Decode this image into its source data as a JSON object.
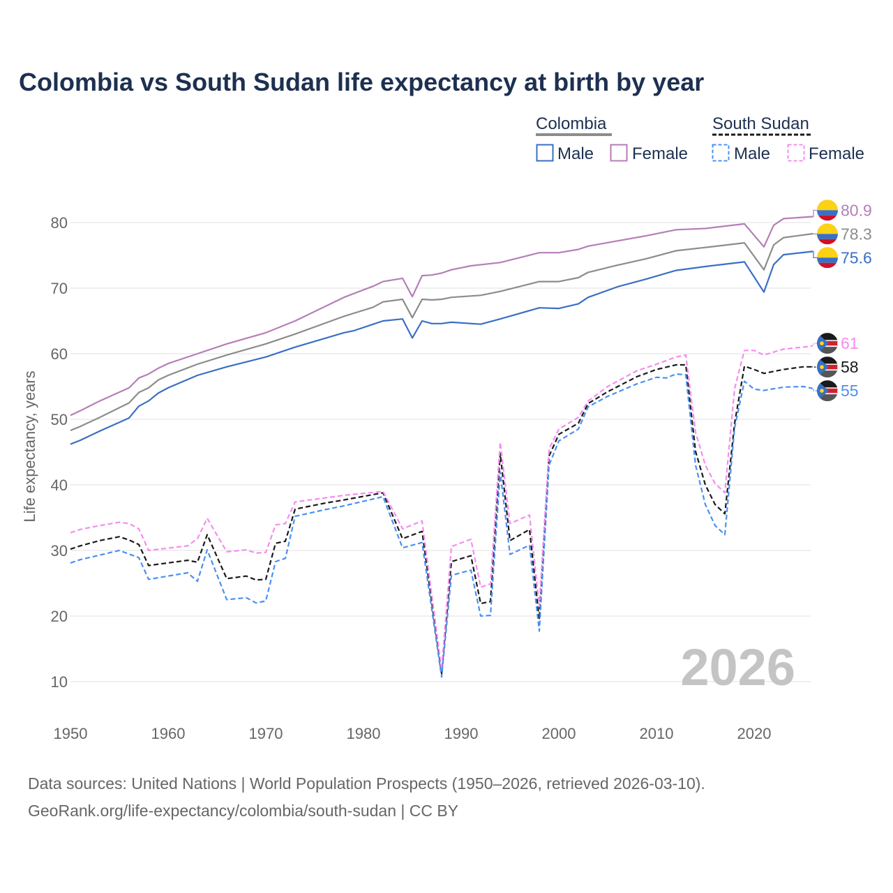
{
  "chart_data": {
    "type": "line",
    "title": "Colombia vs South Sudan life expectancy at birth by year",
    "xlabel": "",
    "ylabel": "Life expectancy, years",
    "xlim": [
      1950,
      2026
    ],
    "ylim": [
      5,
      85
    ],
    "x_ticks": [
      "1950",
      "1960",
      "1970",
      "1980",
      "1990",
      "2000",
      "2010",
      "2020"
    ],
    "y_ticks": [
      "10",
      "20",
      "30",
      "40",
      "50",
      "60",
      "70",
      "80"
    ],
    "grid": true,
    "watermark_year": "2026",
    "legend": {
      "placement": "top-right",
      "groups": [
        {
          "name": "Colombia",
          "items": [
            "Male",
            "Female"
          ]
        },
        {
          "name": "South Sudan",
          "items": [
            "Male",
            "Female"
          ]
        }
      ]
    },
    "series": [
      {
        "name": "Colombia Female",
        "country": "Colombia",
        "sex": "Female",
        "color": "#b57eb8",
        "dashed": false,
        "end_label": "80.9",
        "points": [
          [
            1950,
            50.6
          ],
          [
            1951,
            51.3
          ],
          [
            1953,
            52.8
          ],
          [
            1956,
            54.8
          ],
          [
            1957,
            56.3
          ],
          [
            1958,
            56.9
          ],
          [
            1959,
            57.8
          ],
          [
            1960,
            58.5
          ],
          [
            1963,
            60.0
          ],
          [
            1966,
            61.5
          ],
          [
            1970,
            63.2
          ],
          [
            1973,
            65.0
          ],
          [
            1978,
            68.6
          ],
          [
            1981,
            70.3
          ],
          [
            1982,
            71.0
          ],
          [
            1984,
            71.5
          ],
          [
            1985,
            68.7
          ],
          [
            1986,
            71.9
          ],
          [
            1987,
            72.0
          ],
          [
            1988,
            72.3
          ],
          [
            1989,
            72.8
          ],
          [
            1991,
            73.4
          ],
          [
            1994,
            73.9
          ],
          [
            1998,
            75.4
          ],
          [
            2000,
            75.4
          ],
          [
            2002,
            75.9
          ],
          [
            2003,
            76.4
          ],
          [
            2006,
            77.2
          ],
          [
            2009,
            78.0
          ],
          [
            2012,
            78.9
          ],
          [
            2015,
            79.1
          ],
          [
            2019,
            79.8
          ],
          [
            2021,
            76.3
          ],
          [
            2022,
            79.6
          ],
          [
            2023,
            80.6
          ],
          [
            2026,
            80.9
          ]
        ]
      },
      {
        "name": "Colombia",
        "country": "Colombia",
        "sex": "Both",
        "color": "#8c8c8c",
        "dashed": false,
        "end_label": "78.3",
        "points": [
          [
            1950,
            48.3
          ],
          [
            1951,
            48.9
          ],
          [
            1953,
            50.3
          ],
          [
            1956,
            52.5
          ],
          [
            1957,
            54.1
          ],
          [
            1958,
            54.8
          ],
          [
            1959,
            56.0
          ],
          [
            1960,
            56.7
          ],
          [
            1963,
            58.4
          ],
          [
            1966,
            59.8
          ],
          [
            1970,
            61.5
          ],
          [
            1973,
            63.0
          ],
          [
            1978,
            65.7
          ],
          [
            1981,
            67.1
          ],
          [
            1982,
            67.9
          ],
          [
            1984,
            68.3
          ],
          [
            1985,
            65.5
          ],
          [
            1986,
            68.3
          ],
          [
            1987,
            68.2
          ],
          [
            1988,
            68.3
          ],
          [
            1989,
            68.6
          ],
          [
            1992,
            68.9
          ],
          [
            1994,
            69.5
          ],
          [
            1998,
            71.0
          ],
          [
            2000,
            71.0
          ],
          [
            2002,
            71.6
          ],
          [
            2003,
            72.4
          ],
          [
            2006,
            73.5
          ],
          [
            2009,
            74.5
          ],
          [
            2012,
            75.7
          ],
          [
            2015,
            76.2
          ],
          [
            2019,
            76.9
          ],
          [
            2021,
            72.8
          ],
          [
            2022,
            76.6
          ],
          [
            2023,
            77.7
          ],
          [
            2026,
            78.3
          ]
        ]
      },
      {
        "name": "Colombia Male",
        "country": "Colombia",
        "sex": "Male",
        "color": "#3a6fc4",
        "dashed": false,
        "end_label": "75.6",
        "points": [
          [
            1950,
            46.2
          ],
          [
            1951,
            46.8
          ],
          [
            1953,
            48.2
          ],
          [
            1956,
            50.2
          ],
          [
            1957,
            52.0
          ],
          [
            1958,
            52.8
          ],
          [
            1959,
            54.0
          ],
          [
            1960,
            54.8
          ],
          [
            1963,
            56.7
          ],
          [
            1966,
            58.0
          ],
          [
            1970,
            59.5
          ],
          [
            1973,
            61.0
          ],
          [
            1978,
            63.2
          ],
          [
            1979,
            63.5
          ],
          [
            1981,
            64.5
          ],
          [
            1982,
            65.0
          ],
          [
            1984,
            65.3
          ],
          [
            1985,
            62.4
          ],
          [
            1986,
            65.0
          ],
          [
            1987,
            64.6
          ],
          [
            1988,
            64.6
          ],
          [
            1989,
            64.8
          ],
          [
            1992,
            64.5
          ],
          [
            1994,
            65.3
          ],
          [
            1998,
            67.0
          ],
          [
            2000,
            66.9
          ],
          [
            2002,
            67.6
          ],
          [
            2003,
            68.6
          ],
          [
            2006,
            70.2
          ],
          [
            2009,
            71.4
          ],
          [
            2012,
            72.7
          ],
          [
            2015,
            73.3
          ],
          [
            2019,
            74.0
          ],
          [
            2021,
            69.4
          ],
          [
            2022,
            73.6
          ],
          [
            2023,
            75.1
          ],
          [
            2026,
            75.6
          ]
        ]
      },
      {
        "name": "South Sudan Female",
        "country": "South Sudan",
        "sex": "Female",
        "color": "#f58cf0",
        "dashed": true,
        "end_label": "61",
        "points": [
          [
            1950,
            32.7
          ],
          [
            1951,
            33.2
          ],
          [
            1953,
            33.8
          ],
          [
            1955,
            34.3
          ],
          [
            1956,
            34.1
          ],
          [
            1957,
            33.3
          ],
          [
            1958,
            30.0
          ],
          [
            1962,
            30.7
          ],
          [
            1963,
            31.8
          ],
          [
            1964,
            34.9
          ],
          [
            1966,
            29.8
          ],
          [
            1968,
            30.1
          ],
          [
            1969,
            29.6
          ],
          [
            1970,
            29.7
          ],
          [
            1971,
            33.9
          ],
          [
            1972,
            34.1
          ],
          [
            1973,
            37.4
          ],
          [
            1976,
            38.0
          ],
          [
            1978,
            38.4
          ],
          [
            1982,
            39.0
          ],
          [
            1984,
            33.3
          ],
          [
            1986,
            34.5
          ],
          [
            1988,
            11.8
          ],
          [
            1989,
            30.6
          ],
          [
            1991,
            31.7
          ],
          [
            1992,
            24.4
          ],
          [
            1993,
            24.9
          ],
          [
            1994,
            46.5
          ],
          [
            1995,
            34.1
          ],
          [
            1997,
            35.4
          ],
          [
            1998,
            21.5
          ],
          [
            1999,
            45.5
          ],
          [
            2000,
            48.5
          ],
          [
            2002,
            50.3
          ],
          [
            2003,
            52.8
          ],
          [
            2005,
            55.0
          ],
          [
            2008,
            57.4
          ],
          [
            2010,
            58.4
          ],
          [
            2012,
            59.5
          ],
          [
            2013,
            59.8
          ],
          [
            2014,
            48.0
          ],
          [
            2015,
            43.0
          ],
          [
            2016,
            40.2
          ],
          [
            2017,
            38.8
          ],
          [
            2018,
            54.7
          ],
          [
            2019,
            60.5
          ],
          [
            2020,
            60.5
          ],
          [
            2021,
            59.8
          ],
          [
            2023,
            60.7
          ],
          [
            2025,
            61.0
          ],
          [
            2026,
            61.2
          ]
        ]
      },
      {
        "name": "South Sudan",
        "country": "South Sudan",
        "sex": "Both",
        "color": "#1a1a1a",
        "dashed": true,
        "end_label": "58",
        "points": [
          [
            1950,
            30.2
          ],
          [
            1951,
            30.7
          ],
          [
            1953,
            31.5
          ],
          [
            1955,
            32.1
          ],
          [
            1956,
            31.6
          ],
          [
            1957,
            30.9
          ],
          [
            1958,
            27.7
          ],
          [
            1962,
            28.5
          ],
          [
            1963,
            28.2
          ],
          [
            1964,
            32.4
          ],
          [
            1966,
            25.7
          ],
          [
            1968,
            26.1
          ],
          [
            1969,
            25.5
          ],
          [
            1970,
            25.6
          ],
          [
            1971,
            31.1
          ],
          [
            1972,
            31.4
          ],
          [
            1973,
            36.3
          ],
          [
            1976,
            37.2
          ],
          [
            1978,
            37.7
          ],
          [
            1982,
            38.8
          ],
          [
            1984,
            31.8
          ],
          [
            1986,
            32.9
          ],
          [
            1988,
            11.2
          ],
          [
            1989,
            28.3
          ],
          [
            1991,
            29.2
          ],
          [
            1992,
            21.9
          ],
          [
            1993,
            22.2
          ],
          [
            1994,
            44.8
          ],
          [
            1995,
            31.5
          ],
          [
            1997,
            33.2
          ],
          [
            1998,
            19.5
          ],
          [
            1999,
            44.4
          ],
          [
            2000,
            47.7
          ],
          [
            2002,
            49.4
          ],
          [
            2003,
            52.4
          ],
          [
            2005,
            54.2
          ],
          [
            2008,
            56.5
          ],
          [
            2010,
            57.6
          ],
          [
            2012,
            58.3
          ],
          [
            2013,
            58.3
          ],
          [
            2014,
            45.1
          ],
          [
            2015,
            40.0
          ],
          [
            2016,
            37.0
          ],
          [
            2017,
            35.6
          ],
          [
            2018,
            49.4
          ],
          [
            2019,
            58.1
          ],
          [
            2020,
            57.6
          ],
          [
            2021,
            57.0
          ],
          [
            2023,
            57.6
          ],
          [
            2025,
            58.0
          ],
          [
            2026,
            58.0
          ]
        ]
      },
      {
        "name": "South Sudan Male",
        "country": "South Sudan",
        "sex": "Male",
        "color": "#4a90f0",
        "dashed": true,
        "end_label": "55",
        "points": [
          [
            1950,
            28.1
          ],
          [
            1951,
            28.6
          ],
          [
            1953,
            29.3
          ],
          [
            1955,
            30.0
          ],
          [
            1957,
            28.9
          ],
          [
            1958,
            25.6
          ],
          [
            1962,
            26.6
          ],
          [
            1963,
            25.3
          ],
          [
            1964,
            30.1
          ],
          [
            1966,
            22.5
          ],
          [
            1968,
            22.8
          ],
          [
            1969,
            22.0
          ],
          [
            1970,
            22.3
          ],
          [
            1971,
            28.3
          ],
          [
            1972,
            28.8
          ],
          [
            1973,
            35.2
          ],
          [
            1976,
            36.2
          ],
          [
            1978,
            36.8
          ],
          [
            1982,
            38.2
          ],
          [
            1984,
            30.4
          ],
          [
            1986,
            31.2
          ],
          [
            1988,
            10.7
          ],
          [
            1989,
            26.2
          ],
          [
            1991,
            27.0
          ],
          [
            1992,
            20.0
          ],
          [
            1993,
            20.1
          ],
          [
            1994,
            42.0
          ],
          [
            1995,
            29.4
          ],
          [
            1997,
            30.8
          ],
          [
            1998,
            17.7
          ],
          [
            1999,
            43.0
          ],
          [
            2000,
            46.7
          ],
          [
            2002,
            48.5
          ],
          [
            2003,
            51.9
          ],
          [
            2005,
            53.5
          ],
          [
            2008,
            55.4
          ],
          [
            2010,
            56.4
          ],
          [
            2011,
            56.3
          ],
          [
            2012,
            56.9
          ],
          [
            2013,
            56.8
          ],
          [
            2014,
            43.0
          ],
          [
            2015,
            37.0
          ],
          [
            2016,
            33.8
          ],
          [
            2017,
            32.4
          ],
          [
            2018,
            48.7
          ],
          [
            2019,
            55.8
          ],
          [
            2020,
            54.6
          ],
          [
            2021,
            54.4
          ],
          [
            2023,
            54.9
          ],
          [
            2025,
            55.0
          ],
          [
            2026,
            54.7
          ]
        ]
      }
    ]
  },
  "footer": {
    "line1": "Data sources: United Nations | World Population Prospects (1950–2026, retrieved 2026-03-10).",
    "line2": "GeoRank.org/life-expectancy/colombia/south-sudan | CC BY"
  }
}
